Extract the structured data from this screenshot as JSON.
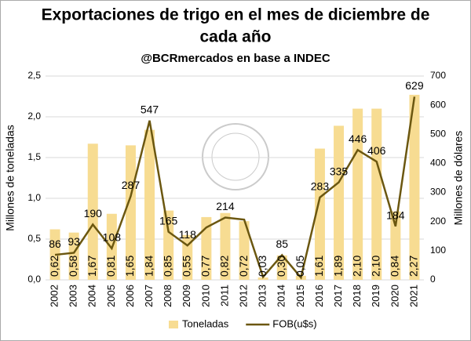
{
  "chart_data": {
    "type": "combo",
    "title": [
      "Exportaciones de trigo en el mes de diciembre de",
      "cada año"
    ],
    "subtitle": "@BCRmercados en base a INDEC",
    "ylabel": "Millones de toneladas",
    "y2label": "Millones de dólares",
    "categories": [
      "2002",
      "2003",
      "2004",
      "2005",
      "2006",
      "2007",
      "2008",
      "2009",
      "2010",
      "2011",
      "2012",
      "2013",
      "2014",
      "2015",
      "2016",
      "2017",
      "2018",
      "2019",
      "2020",
      "2021"
    ],
    "series": [
      {
        "name": "Toneladas",
        "type": "bar",
        "color": "#f7dc92",
        "values": [
          0.62,
          0.58,
          1.67,
          0.81,
          1.65,
          1.84,
          0.85,
          0.55,
          0.77,
          0.82,
          0.72,
          0.03,
          0.3,
          0.05,
          1.61,
          1.89,
          2.1,
          2.1,
          0.84,
          2.27
        ],
        "value_labels": [
          "0,62",
          "0,58",
          "1,67",
          "0,81",
          "1,65",
          "1,84",
          "0,85",
          "0,55",
          "0,77",
          "0,82",
          "0,72",
          "0,03",
          "0,30",
          "0,05",
          "1,61",
          "1,89",
          "2,10",
          "2,10",
          "0,84",
          "2,27"
        ]
      },
      {
        "name": "FOB(u$s)",
        "type": "line",
        "axis": "y2",
        "color": "#6b5710",
        "values": [
          86,
          93,
          190,
          108,
          287,
          547,
          165,
          118,
          180,
          214,
          207,
          10,
          85,
          8,
          283,
          335,
          446,
          406,
          184,
          629
        ],
        "value_labels": [
          "86",
          "93",
          "190",
          "108",
          "287",
          "547",
          "165",
          "118",
          null,
          "214",
          null,
          null,
          "85",
          null,
          "283",
          "335",
          "446",
          "406",
          "184",
          "629"
        ]
      }
    ],
    "ylim": [
      0,
      2.5
    ],
    "yticks": [
      {
        "value": 0,
        "label": "0,0"
      },
      {
        "value": 0.5,
        "label": "0,5"
      },
      {
        "value": 1,
        "label": "1,0"
      },
      {
        "value": 1.5,
        "label": "1,5"
      },
      {
        "value": 2,
        "label": "2,0"
      },
      {
        "value": 2.5,
        "label": "2,5"
      }
    ],
    "y2lim": [
      0,
      700
    ],
    "y2ticks": [
      0,
      100,
      200,
      300,
      400,
      500,
      600,
      700
    ],
    "grid": true,
    "legend": "bottom"
  }
}
